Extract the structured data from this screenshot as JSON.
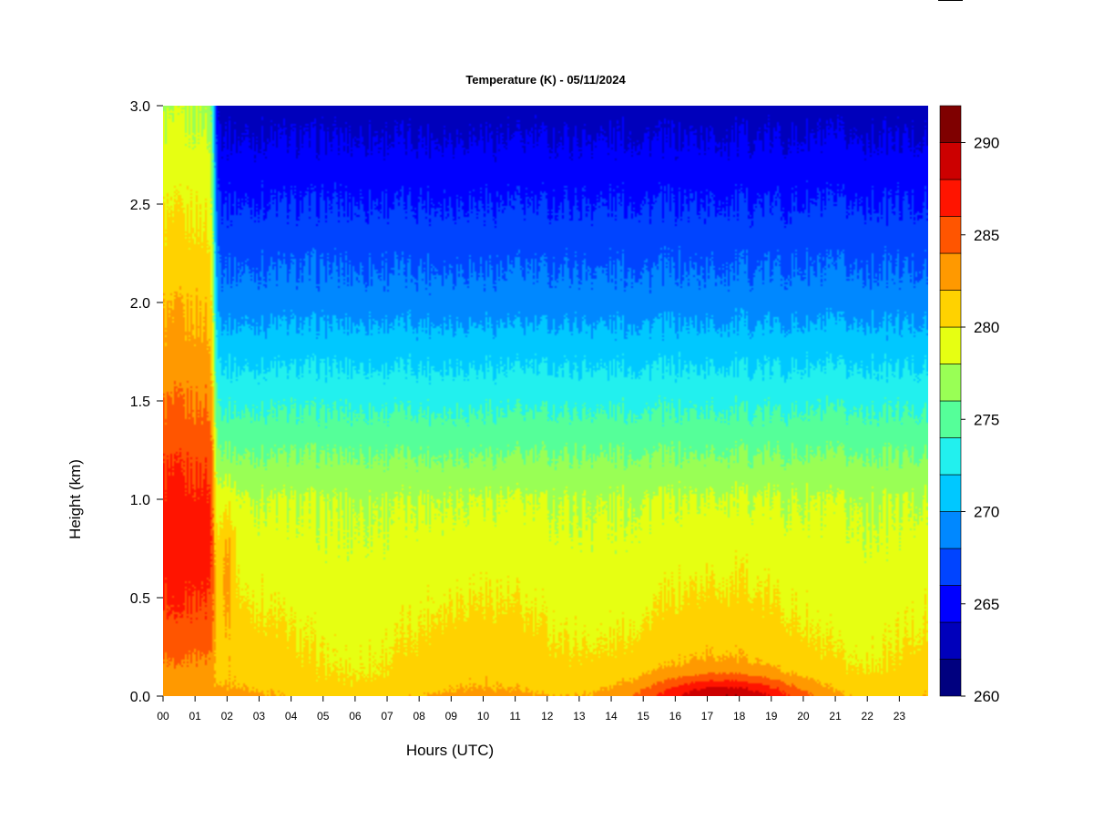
{
  "chart_data": {
    "type": "heatmap",
    "title": "Temperature (K) - 05/11/2024",
    "xlabel": "Hours (UTC)",
    "ylabel": "Height (km)",
    "xlim": [
      0,
      23.9
    ],
    "ylim": [
      0.0,
      3.0
    ],
    "x_ticks": [
      0,
      1,
      2,
      3,
      4,
      5,
      6,
      7,
      8,
      9,
      10,
      11,
      12,
      13,
      14,
      15,
      16,
      17,
      18,
      19,
      20,
      21,
      22,
      23
    ],
    "x_tick_labels": [
      "00",
      "01",
      "02",
      "03",
      "04",
      "05",
      "06",
      "07",
      "08",
      "09",
      "10",
      "11",
      "12",
      "13",
      "14",
      "15",
      "16",
      "17",
      "18",
      "19",
      "20",
      "21",
      "22",
      "23"
    ],
    "y_ticks": [
      0.0,
      0.5,
      1.0,
      1.5,
      2.0,
      2.5,
      3.0
    ],
    "y_tick_labels": [
      "0.0",
      "0.5",
      "1.0",
      "1.5",
      "2.0",
      "2.5",
      "3.0"
    ],
    "colorbar": {
      "range": [
        260,
        292
      ],
      "tick_values": [
        260,
        265,
        270,
        275,
        280,
        285,
        290
      ],
      "tick_labels": [
        "260",
        "265",
        "270",
        "275",
        "280",
        "285",
        "290"
      ],
      "levels": [
        260,
        262,
        264,
        266,
        268,
        270,
        272,
        274,
        276,
        278,
        280,
        282,
        284,
        286,
        288,
        290,
        292
      ],
      "colors": [
        "#00007f",
        "#0000bb",
        "#0000ff",
        "#0044ff",
        "#0088ff",
        "#00c8ff",
        "#22f0ee",
        "#55ff99",
        "#99ff55",
        "#e6ff12",
        "#ffd200",
        "#ff9900",
        "#ff5500",
        "#ff1400",
        "#cc0000",
        "#7f0000"
      ]
    },
    "field_description": {
      "morning_warm_column": {
        "x_range": [
          0.0,
          1.6
        ],
        "peak_temperature": 287,
        "peak_height_range": [
          0.5,
          1.1
        ]
      },
      "surface_warming_peak": {
        "x": 17.6,
        "temperature": 288
      },
      "temperature_at_3km": 263,
      "temperature_at_2km": 269,
      "temperature_at_1km": 278,
      "temperature_near_surface": 281
    }
  }
}
